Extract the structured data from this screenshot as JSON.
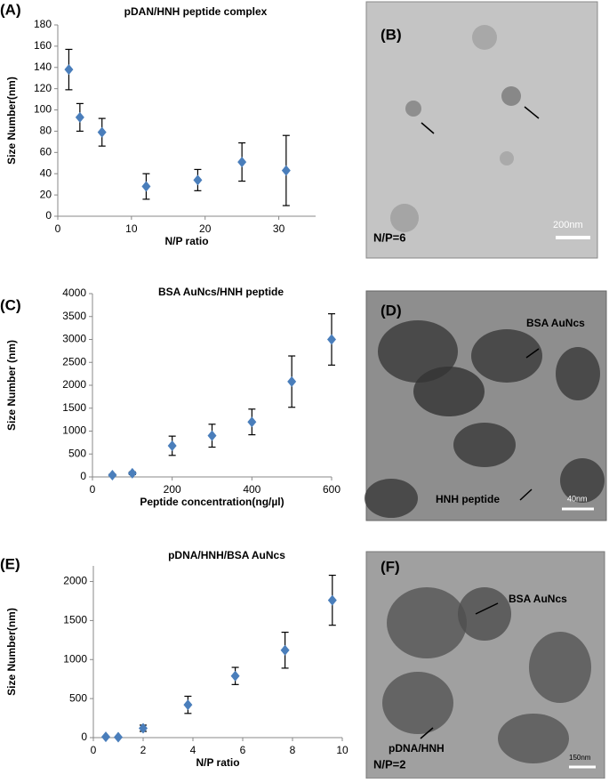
{
  "chart_data": [
    {
      "type": "scatter",
      "panel_label": "(A)",
      "title": "pDAN/HNH peptide complex",
      "xlabel": "N/P ratio",
      "ylabel": "Size Number(nm)",
      "xlim": [
        0,
        35
      ],
      "xticks": [
        0,
        10,
        20,
        30
      ],
      "ylim": [
        0,
        180
      ],
      "yticks": [
        0,
        20,
        40,
        60,
        80,
        100,
        120,
        140,
        160,
        180
      ],
      "series": [
        {
          "color": "#4a7ebb",
          "x": [
            1.5,
            3,
            6,
            12,
            19,
            25,
            31
          ],
          "values": [
            138,
            93,
            79,
            28,
            34,
            51,
            43
          ],
          "errors": [
            19,
            13,
            13,
            12,
            10,
            18,
            33
          ]
        }
      ]
    },
    {
      "type": "scatter",
      "panel_label": "(C)",
      "title": "BSA AuNcs/HNH peptide",
      "xlabel": "Peptide concentration(ng/µl)",
      "ylabel": "Size Number (nm)",
      "xlim": [
        0,
        600
      ],
      "xticks": [
        0,
        200,
        400,
        600
      ],
      "ylim": [
        0,
        4000
      ],
      "yticks": [
        0,
        500,
        1000,
        1500,
        2000,
        2500,
        3000,
        3500,
        4000
      ],
      "series": [
        {
          "color": "#4a7ebb",
          "x": [
            50,
            100,
            200,
            300,
            400,
            500,
            600
          ],
          "values": [
            40,
            80,
            680,
            900,
            1200,
            2080,
            3000
          ],
          "errors": [
            20,
            30,
            210,
            250,
            280,
            560,
            560
          ]
        }
      ]
    },
    {
      "type": "scatter",
      "panel_label": "(E)",
      "title": "pDNA/HNH/BSA AuNcs",
      "xlabel": "N/P ratio",
      "ylabel": "Size Number(nm)",
      "xlim": [
        0,
        10
      ],
      "xticks": [
        0,
        2,
        4,
        6,
        8,
        10
      ],
      "ylim": [
        0,
        2200
      ],
      "yticks": [
        0,
        500,
        1000,
        1500,
        2000
      ],
      "series": [
        {
          "color": "#4a7ebb",
          "x": [
            0.5,
            1,
            2,
            3.8,
            5.7,
            7.7,
            9.6
          ],
          "values": [
            10,
            5,
            120,
            420,
            790,
            1120,
            1760
          ],
          "errors": [
            5,
            5,
            40,
            110,
            110,
            230,
            320
          ]
        }
      ]
    }
  ],
  "images": [
    {
      "panel_label": "(B)",
      "annotations": [
        "N/P=6",
        "200nm"
      ]
    },
    {
      "panel_label": "(D)",
      "annotations": [
        "BSA AuNcs",
        "HNH peptide",
        "40nm"
      ]
    },
    {
      "panel_label": "(F)",
      "annotations": [
        "BSA AuNcs",
        "pDNA/HNH",
        "N/P=2",
        "150nm"
      ]
    }
  ]
}
